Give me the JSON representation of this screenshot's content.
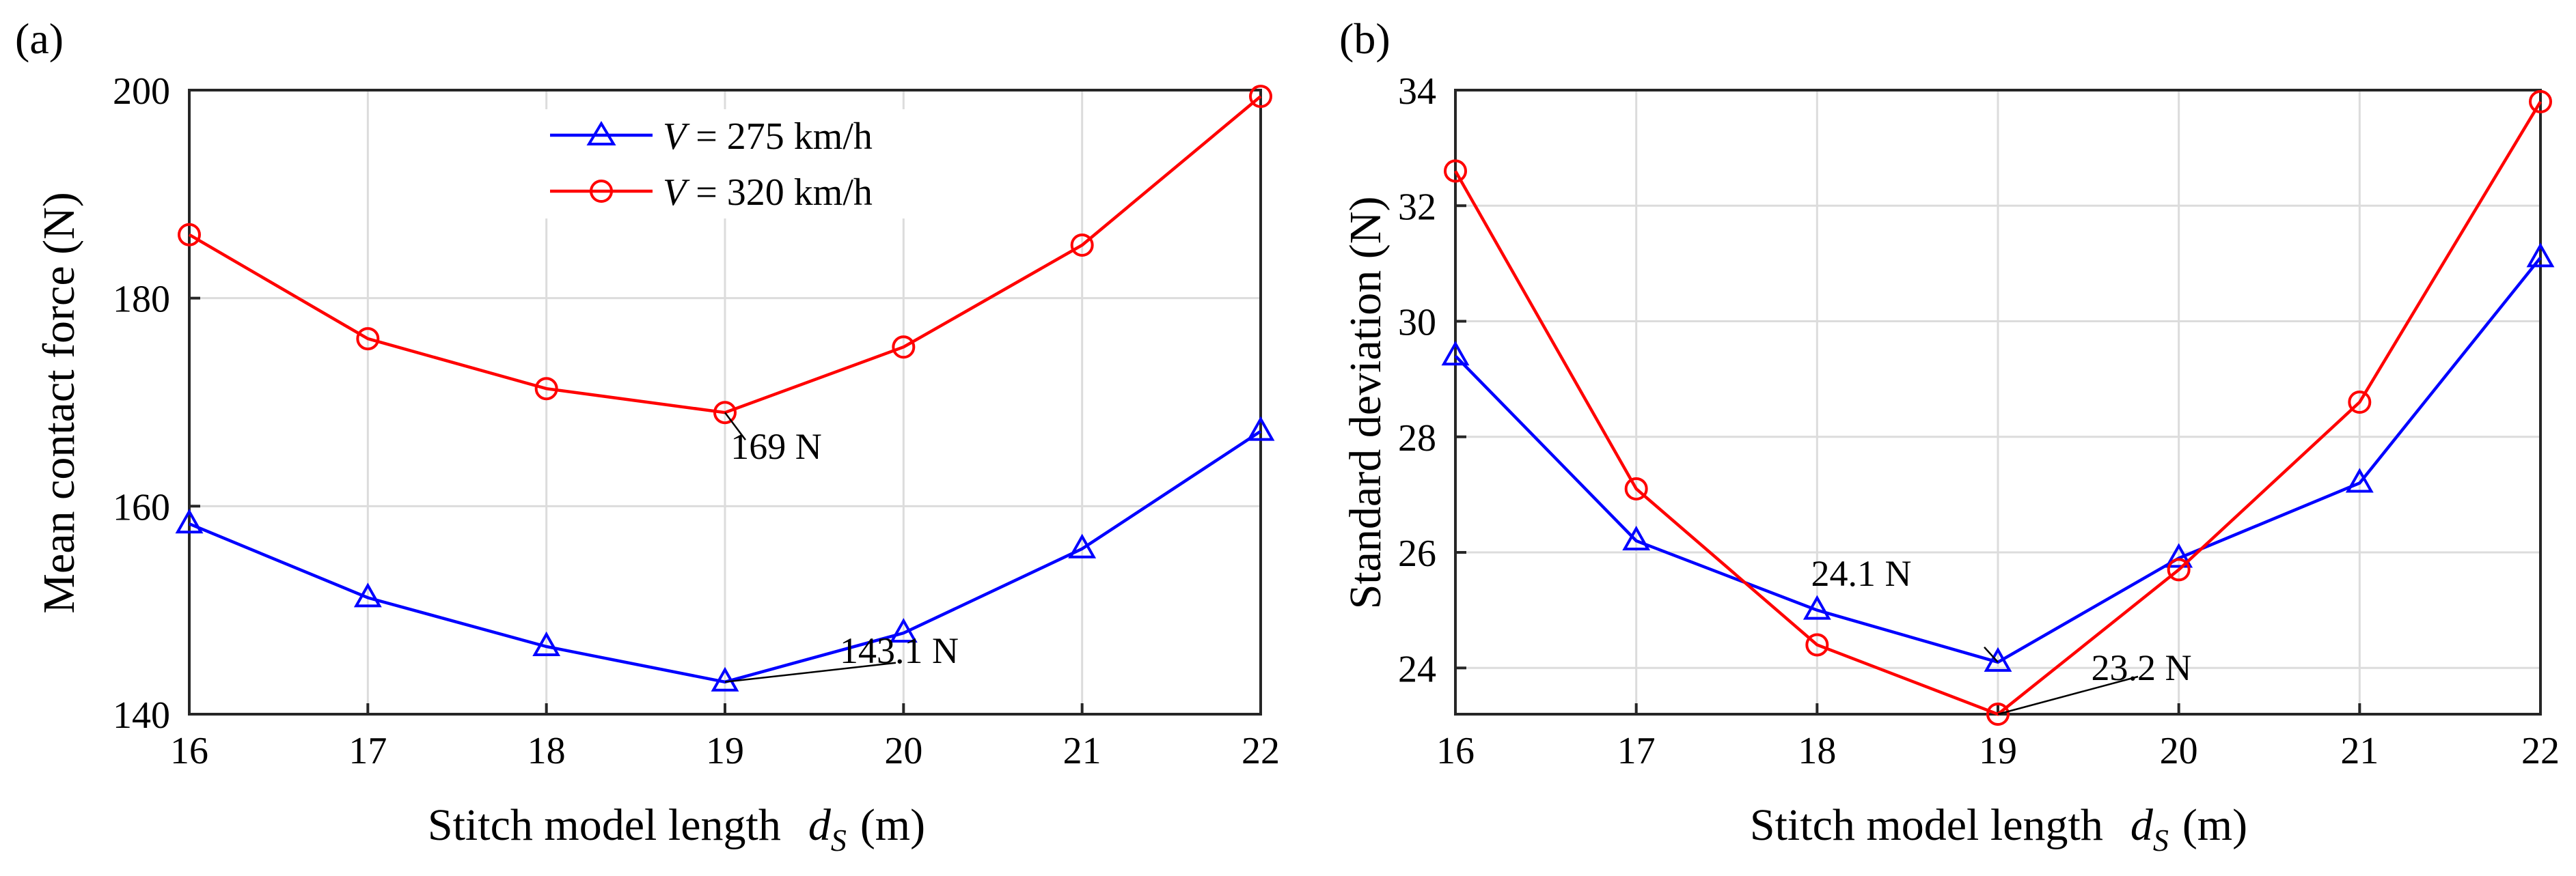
{
  "chart_data": [
    {
      "type": "line",
      "panel_label": "(a)",
      "title": "",
      "xlabel": "Stitch model length",
      "xlabel_symbol": "d",
      "xlabel_subscript": "S",
      "xlabel_unit": "(m)",
      "ylabel": "Mean contact force (N)",
      "x": [
        16,
        17,
        18,
        19,
        20,
        21,
        22
      ],
      "xlim": [
        16,
        22
      ],
      "ylim": [
        140,
        200
      ],
      "xticks": [
        "16",
        "17",
        "18",
        "19",
        "20",
        "21",
        "22"
      ],
      "yticks": [
        "140",
        "160",
        "180",
        "200"
      ],
      "grid": true,
      "legend_position": "top-center",
      "series": [
        {
          "name": "V = 275 km/h",
          "symbol": "V",
          "label_rest": " = 275 km/h",
          "marker": "triangle",
          "color": "#0000ff",
          "values": [
            158.3,
            151.2,
            146.5,
            143.1,
            147.8,
            155.9,
            167.2
          ]
        },
        {
          "name": "V = 320 km/h",
          "symbol": "V",
          "label_rest": " = 320 km/h",
          "marker": "circle",
          "color": "#ff0000",
          "values": [
            186.1,
            176.1,
            171.3,
            169.0,
            175.3,
            185.1,
            199.4
          ]
        }
      ],
      "annotations": [
        {
          "text": "169 N",
          "x": 19,
          "y": 169.0,
          "series": "V = 320 km/h"
        },
        {
          "text": "143.1 N",
          "x": 19,
          "y": 143.1,
          "series": "V = 275 km/h"
        }
      ]
    },
    {
      "type": "line",
      "panel_label": "(b)",
      "title": "",
      "xlabel": "Stitch model length",
      "xlabel_symbol": "d",
      "xlabel_subscript": "S",
      "xlabel_unit": "(m)",
      "ylabel": "Standard deviation (N)",
      "x": [
        16,
        17,
        18,
        19,
        20,
        21,
        22
      ],
      "xlim": [
        16,
        22
      ],
      "ylim": [
        23.2,
        34
      ],
      "xticks": [
        "16",
        "17",
        "18",
        "19",
        "20",
        "21",
        "22"
      ],
      "yticks": [
        "24",
        "26",
        "28",
        "30",
        "32",
        "34"
      ],
      "grid": true,
      "legend_position": "none",
      "series": [
        {
          "name": "V = 275 km/h",
          "marker": "triangle",
          "color": "#0000ff",
          "values": [
            29.4,
            26.2,
            25.0,
            24.1,
            25.9,
            27.2,
            31.1
          ]
        },
        {
          "name": "V = 320 km/h",
          "marker": "circle",
          "color": "#ff0000",
          "values": [
            32.6,
            27.1,
            24.4,
            23.2,
            25.7,
            28.6,
            33.8
          ]
        }
      ],
      "annotations": [
        {
          "text": "24.1 N",
          "x": 19,
          "y": 24.1,
          "series": "V = 275 km/h"
        },
        {
          "text": "23.2 N",
          "x": 19,
          "y": 23.2,
          "series": "V = 320 km/h"
        }
      ]
    }
  ]
}
